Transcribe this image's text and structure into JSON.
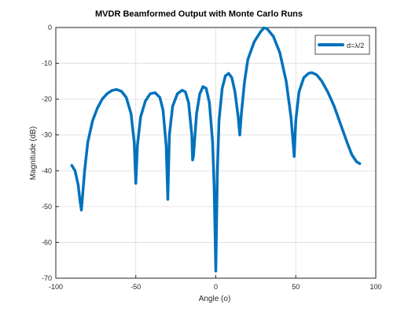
{
  "chart_data": {
    "type": "line",
    "title": "MVDR Beamformed Output with Monte Carlo Runs",
    "xlabel": "Angle (ο)",
    "ylabel": "Magnitude (dB)",
    "xlim": [
      -100,
      100
    ],
    "ylim": [
      -70,
      0
    ],
    "xticks": [
      -100,
      -50,
      0,
      50,
      100
    ],
    "yticks": [
      0,
      -10,
      -20,
      -30,
      -40,
      -50,
      -60,
      -70
    ],
    "grid": true,
    "legend_position": "top-right",
    "series": [
      {
        "name": "d=λ/2",
        "color": "#0072bd",
        "x": [
          -90,
          -88,
          -86,
          -85,
          -84,
          -82,
          -80,
          -77,
          -74,
          -71,
          -68,
          -65,
          -62,
          -59,
          -56,
          -53,
          -51,
          -50,
          -49,
          -47,
          -44,
          -41,
          -38,
          -35,
          -33,
          -31,
          -30,
          -29,
          -27,
          -24,
          -21,
          -19,
          -17,
          -15,
          -14.5,
          -14,
          -12,
          -10,
          -8,
          -6,
          -4,
          -2,
          -1,
          0,
          1,
          2,
          4,
          6,
          8,
          10,
          12,
          14,
          15,
          16,
          18,
          20,
          24,
          28,
          30,
          32,
          36,
          40,
          44,
          47,
          48.5,
          49,
          50,
          52,
          55,
          58,
          60,
          63,
          66,
          70,
          74,
          78,
          82,
          85,
          88,
          90
        ],
        "y": [
          -38.5,
          -40,
          -44,
          -48,
          -51,
          -40,
          -32,
          -26,
          -22.5,
          -20,
          -18.5,
          -17.6,
          -17.3,
          -17.8,
          -19.5,
          -24,
          -32,
          -43.5,
          -33,
          -25,
          -20.5,
          -18.5,
          -18.2,
          -19.5,
          -23,
          -33,
          -48,
          -30,
          -22,
          -18.5,
          -17.5,
          -18,
          -21,
          -30,
          -37,
          -36,
          -24,
          -18.5,
          -16.5,
          -17,
          -21,
          -32,
          -45,
          -68,
          -40,
          -26,
          -17,
          -13.5,
          -12.8,
          -14,
          -18,
          -25,
          -30,
          -24,
          -15,
          -9,
          -4,
          -1.2,
          -0.1,
          -0.3,
          -2.5,
          -7,
          -15,
          -25,
          -33,
          -36,
          -26,
          -18,
          -14,
          -12.8,
          -12.6,
          -13.2,
          -14.8,
          -18,
          -22,
          -27,
          -32,
          -35.5,
          -37.5,
          -38
        ]
      }
    ]
  }
}
